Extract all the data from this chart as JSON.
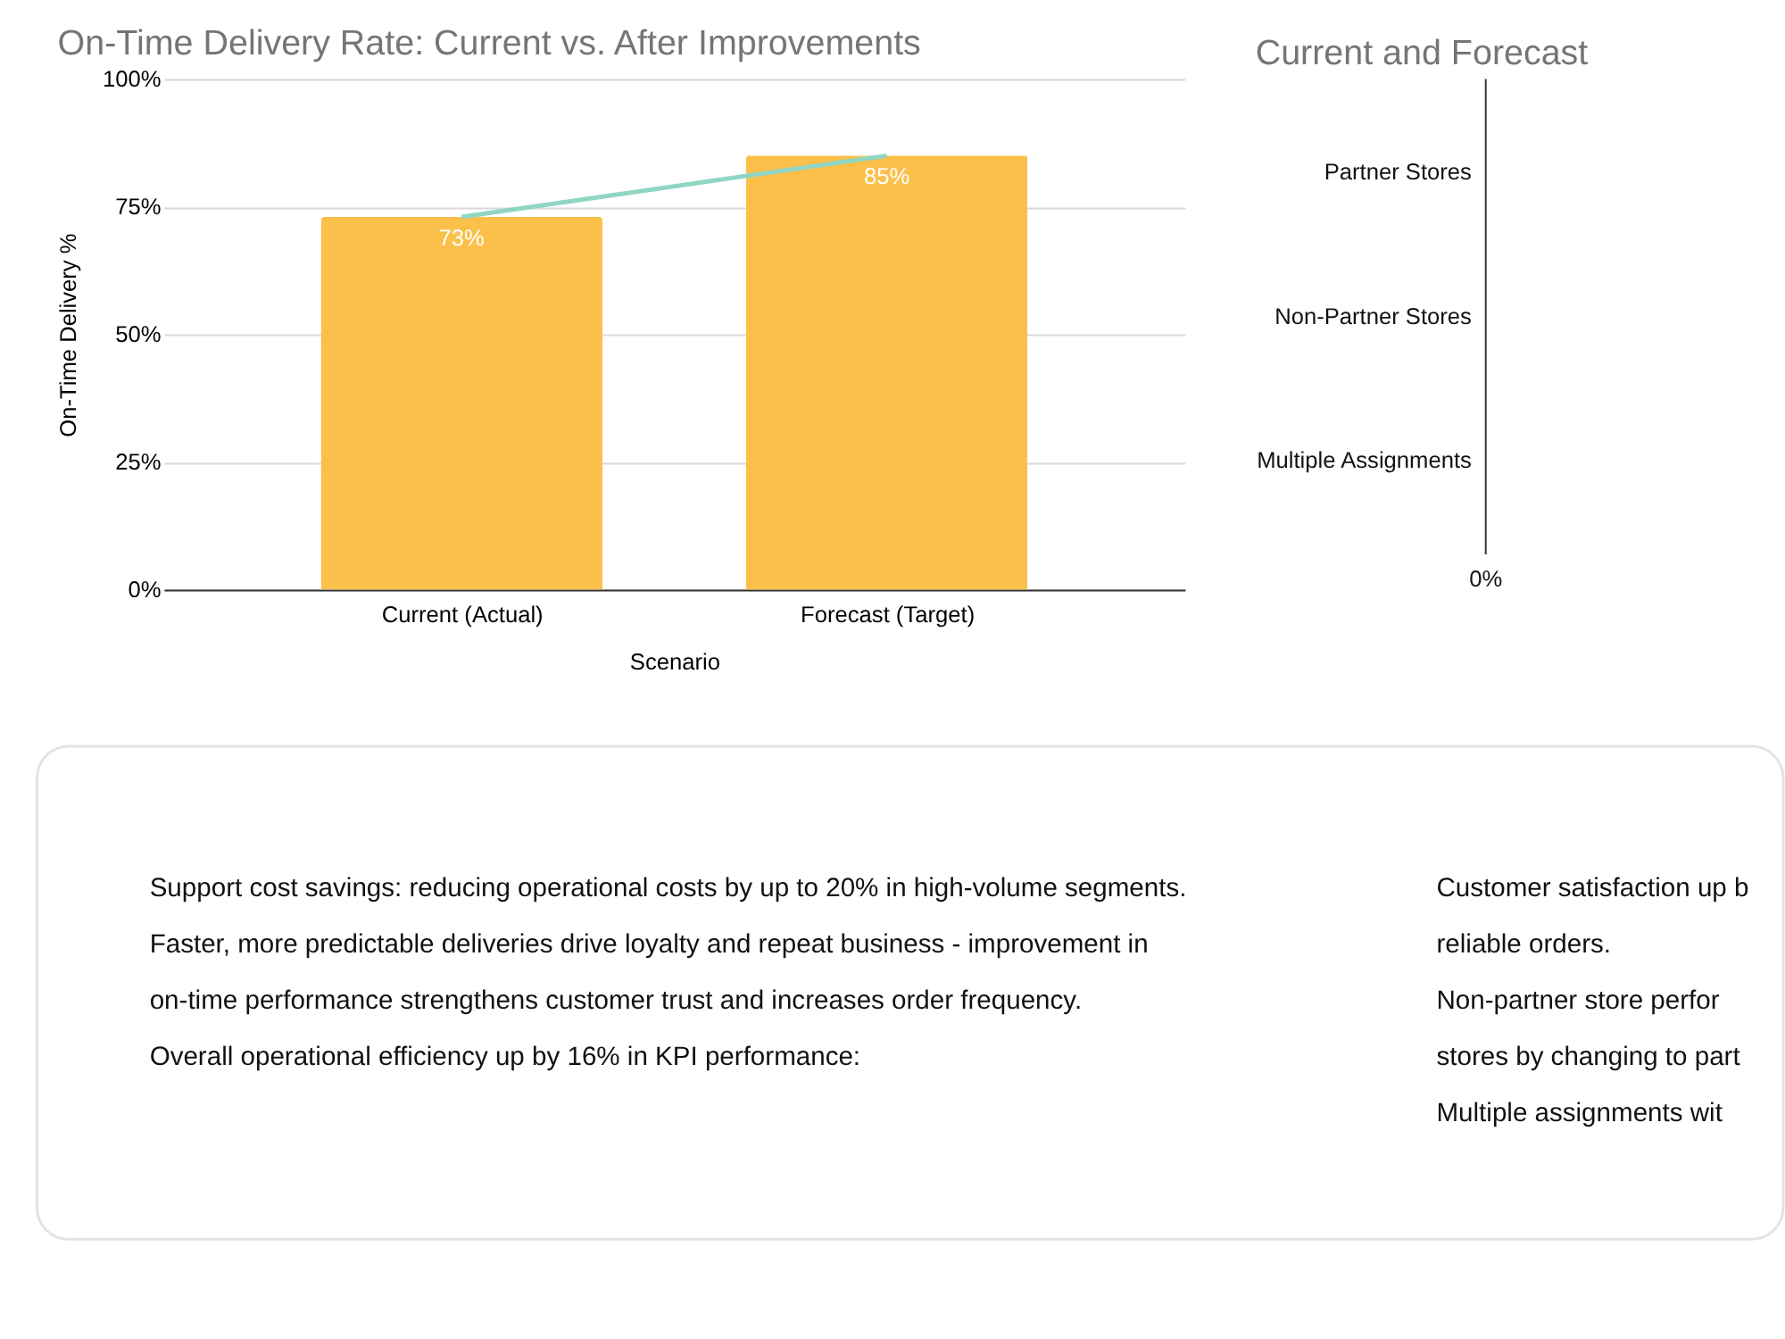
{
  "chart_data": [
    {
      "type": "bar",
      "title": "On-Time Delivery Rate: Current vs. After Improvements",
      "xlabel": "Scenario",
      "ylabel": "On-Time Delivery %",
      "categories": [
        "Current (Actual)",
        "Forecast (Target)"
      ],
      "series": [
        {
          "type": "bar",
          "color": "#fbc04a",
          "values": [
            73,
            85
          ],
          "value_labels": [
            "73%",
            "85%"
          ]
        },
        {
          "type": "line",
          "color": "#8fd6c4",
          "values": [
            73,
            85
          ]
        }
      ],
      "ylim": [
        0,
        100
      ],
      "yticks": [
        {
          "value": 0,
          "label": "0%"
        },
        {
          "value": 25,
          "label": "25%"
        },
        {
          "value": 50,
          "label": "50%"
        },
        {
          "value": 75,
          "label": "75%"
        },
        {
          "value": 100,
          "label": "100%"
        }
      ],
      "grid": "y"
    },
    {
      "type": "other",
      "title": "Current and Forecast",
      "categories": [
        "Partner Stores",
        "Non-Partner Stores",
        "Multiple Assignments"
      ],
      "annotations": [
        "0%"
      ]
    },
    {
      "type": "other",
      "annotations": [
        "Support cost savings: reducing operational costs by up to 20% in high-volume segments.",
        "Faster, more predictable deliveries drive loyalty and repeat business - improvement in on-time performance strengthens customer trust and increases order frequency.",
        "Overall operational efficiency up by 16% in KPI performance:",
        "Customer satisfaction up b reliable orders.",
        "Non-partner store perfor stores by changing to part",
        "Multiple assignments wit"
      ]
    }
  ]
}
